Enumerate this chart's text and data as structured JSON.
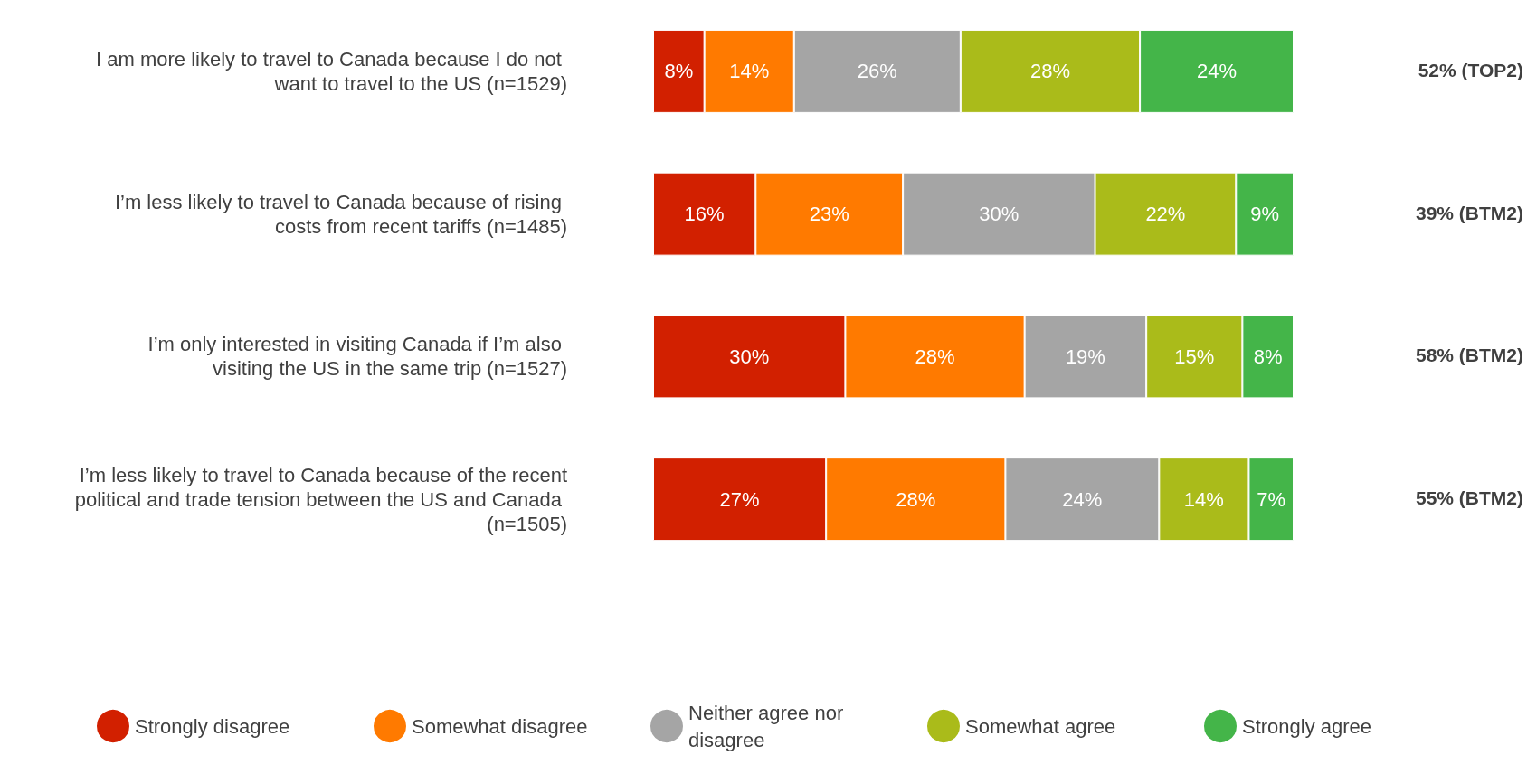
{
  "chart_data": {
    "type": "bar",
    "orientation": "horizontal",
    "stacked": true,
    "legend": "bottom",
    "categories": [
      "I am more likely to travel to Canada because I do not want to travel to the US (n=1529)",
      "I’m less likely to travel to Canada because of rising costs from recent tariffs (n=1485)",
      "I’m only interested in visiting Canada if I’m also visiting the US in the same trip (n=1527)",
      "I’m less likely to travel to Canada because of the recent political and trade tension between the US and Canada (n=1505)"
    ],
    "series": [
      {
        "name": "Strongly disagree",
        "color": "#d22000",
        "values": [
          8,
          16,
          30,
          27
        ],
        "value_labels": [
          "8%",
          "16%",
          "30%",
          "27%"
        ]
      },
      {
        "name": "Somewhat disagree",
        "color": "#ff7a00",
        "values": [
          14,
          23,
          28,
          28
        ],
        "value_labels": [
          "14%",
          "23%",
          "28%",
          "28%"
        ]
      },
      {
        "name": "Neither agree nor disagree",
        "color": "#a5a5a5",
        "values": [
          26,
          30,
          19,
          24
        ],
        "value_labels": [
          "26%",
          "30%",
          "19%",
          "24%"
        ]
      },
      {
        "name": "Somewhat agree",
        "color": "#aabb1a",
        "values": [
          28,
          22,
          15,
          14
        ],
        "value_labels": [
          "28%",
          "22%",
          "15%",
          "14%"
        ]
      },
      {
        "name": "Strongly agree",
        "color": "#44b549",
        "values": [
          24,
          9,
          8,
          7
        ],
        "value_labels": [
          "24%",
          "9%",
          "8%",
          "7%"
        ]
      }
    ],
    "annotations": [
      "52% (TOP2)",
      "39% (BTM2)",
      "58% (BTM2)",
      "55% (BTM2)"
    ]
  }
}
